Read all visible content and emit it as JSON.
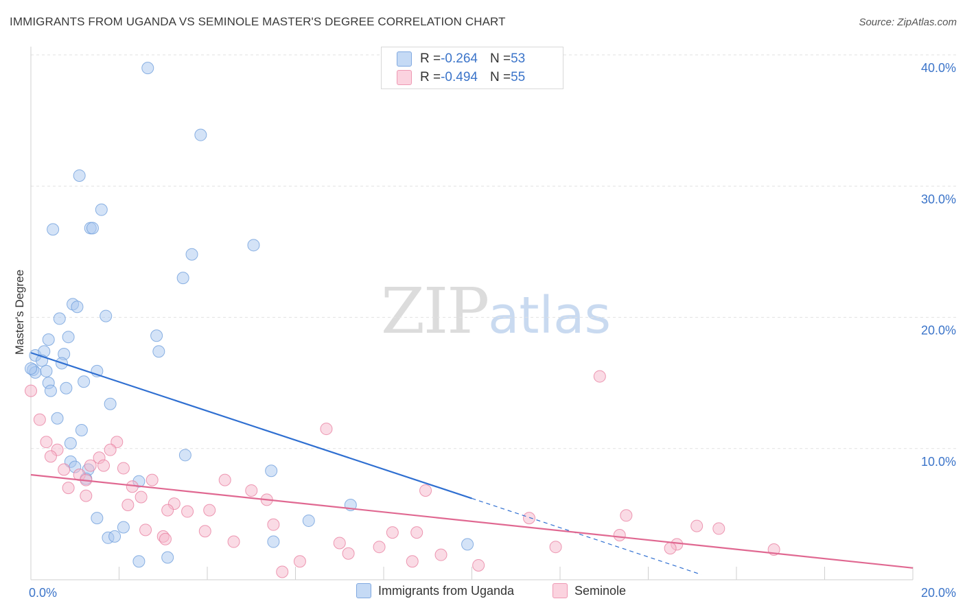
{
  "title": "IMMIGRANTS FROM UGANDA VS SEMINOLE MASTER'S DEGREE CORRELATION CHART",
  "source": "Source: ZipAtlas.com",
  "watermark": {
    "zip": "ZIP",
    "atlas": "atlas"
  },
  "stats": [
    {
      "r_label": "R = ",
      "r_value": "-0.264",
      "n_label": "N = ",
      "n_value": "53",
      "color": "#a9c8f0"
    },
    {
      "r_label": "R = ",
      "r_value": "-0.494",
      "n_label": "N = ",
      "n_value": "55",
      "color": "#f6b8cb"
    }
  ],
  "legend": [
    {
      "label": "Immigrants from Uganda",
      "color": "#a9c8f0"
    },
    {
      "label": "Seminole",
      "color": "#f6b8cb"
    }
  ],
  "chart_data": {
    "type": "scatter",
    "xlabel": "",
    "ylabel": "Master's Degree",
    "xlim": [
      0,
      20
    ],
    "ylim": [
      0,
      40
    ],
    "x_tick_labels": [
      "0.0%",
      "20.0%"
    ],
    "y_tick_labels": [
      "10.0%",
      "20.0%",
      "30.0%",
      "40.0%"
    ],
    "y_ticks": [
      10,
      20,
      30,
      40
    ],
    "grid": true,
    "series": [
      {
        "name": "Immigrants from Uganda",
        "color": "#a9c8f0",
        "stroke": "#6f9fdc",
        "trend_color": "#2f6fd1",
        "trend": {
          "x1": 0.0,
          "y1": 17.3,
          "x2": 10.0,
          "y2": 6.2,
          "dash_to_x": 15.2,
          "dash_to_y": 0.4
        },
        "points": [
          [
            2.65,
            39.0
          ],
          [
            3.85,
            33.9
          ],
          [
            1.1,
            30.8
          ],
          [
            1.6,
            28.2
          ],
          [
            1.35,
            26.8
          ],
          [
            1.4,
            26.8
          ],
          [
            0.5,
            26.7
          ],
          [
            5.05,
            25.5
          ],
          [
            3.65,
            24.8
          ],
          [
            3.45,
            23.0
          ],
          [
            0.95,
            21.0
          ],
          [
            1.05,
            20.8
          ],
          [
            1.7,
            20.1
          ],
          [
            0.65,
            19.9
          ],
          [
            0.4,
            18.3
          ],
          [
            0.85,
            18.5
          ],
          [
            2.85,
            18.6
          ],
          [
            2.9,
            17.4
          ],
          [
            0.1,
            17.1
          ],
          [
            0.3,
            17.4
          ],
          [
            0.75,
            17.2
          ],
          [
            0.25,
            16.7
          ],
          [
            0.7,
            16.5
          ],
          [
            0.05,
            16.0
          ],
          [
            0.1,
            15.8
          ],
          [
            0.35,
            15.9
          ],
          [
            1.5,
            15.9
          ],
          [
            0.4,
            15.0
          ],
          [
            1.2,
            15.1
          ],
          [
            0.8,
            14.6
          ],
          [
            0.45,
            14.4
          ],
          [
            1.8,
            13.4
          ],
          [
            0.6,
            12.3
          ],
          [
            1.15,
            11.4
          ],
          [
            0.9,
            10.4
          ],
          [
            3.5,
            9.5
          ],
          [
            0.9,
            9.0
          ],
          [
            1.0,
            8.6
          ],
          [
            1.3,
            8.4
          ],
          [
            5.45,
            8.3
          ],
          [
            1.25,
            7.7
          ],
          [
            2.45,
            7.5
          ],
          [
            7.25,
            5.7
          ],
          [
            1.5,
            4.7
          ],
          [
            6.3,
            4.5
          ],
          [
            2.1,
            4.0
          ],
          [
            1.75,
            3.2
          ],
          [
            1.9,
            3.3
          ],
          [
            5.5,
            2.9
          ],
          [
            9.9,
            2.7
          ],
          [
            3.1,
            1.7
          ],
          [
            2.45,
            1.4
          ],
          [
            0.0,
            16.1
          ]
        ]
      },
      {
        "name": "Seminole",
        "color": "#f6b8cb",
        "stroke": "#e87fa0",
        "trend_color": "#e06891",
        "trend": {
          "x1": 0.0,
          "y1": 8.0,
          "x2": 20.0,
          "y2": 0.9
        },
        "points": [
          [
            0.0,
            14.4
          ],
          [
            0.2,
            12.2
          ],
          [
            6.7,
            11.5
          ],
          [
            0.35,
            10.5
          ],
          [
            1.95,
            10.5
          ],
          [
            0.6,
            9.9
          ],
          [
            1.8,
            9.9
          ],
          [
            0.45,
            9.4
          ],
          [
            1.55,
            9.3
          ],
          [
            1.35,
            8.7
          ],
          [
            1.65,
            8.7
          ],
          [
            2.1,
            8.5
          ],
          [
            0.75,
            8.4
          ],
          [
            1.1,
            8.0
          ],
          [
            1.25,
            7.6
          ],
          [
            2.75,
            7.6
          ],
          [
            4.4,
            7.6
          ],
          [
            2.3,
            7.1
          ],
          [
            0.85,
            7.0
          ],
          [
            5.0,
            6.8
          ],
          [
            8.95,
            6.8
          ],
          [
            1.25,
            6.4
          ],
          [
            2.5,
            6.3
          ],
          [
            5.35,
            6.1
          ],
          [
            3.25,
            5.8
          ],
          [
            2.2,
            5.7
          ],
          [
            3.1,
            5.3
          ],
          [
            3.55,
            5.2
          ],
          [
            4.05,
            5.3
          ],
          [
            11.3,
            4.7
          ],
          [
            13.5,
            4.9
          ],
          [
            5.5,
            4.2
          ],
          [
            15.1,
            4.1
          ],
          [
            15.6,
            3.9
          ],
          [
            2.6,
            3.8
          ],
          [
            3.95,
            3.7
          ],
          [
            8.2,
            3.6
          ],
          [
            8.75,
            3.6
          ],
          [
            3.0,
            3.3
          ],
          [
            3.05,
            3.1
          ],
          [
            13.35,
            3.4
          ],
          [
            4.6,
            2.9
          ],
          [
            7.0,
            2.8
          ],
          [
            14.65,
            2.7
          ],
          [
            7.9,
            2.5
          ],
          [
            11.9,
            2.5
          ],
          [
            14.5,
            2.4
          ],
          [
            16.85,
            2.3
          ],
          [
            7.2,
            2.0
          ],
          [
            9.3,
            1.9
          ],
          [
            6.1,
            1.4
          ],
          [
            8.65,
            1.4
          ],
          [
            5.7,
            0.6
          ],
          [
            10.15,
            1.1
          ],
          [
            12.9,
            15.5
          ]
        ]
      }
    ]
  }
}
